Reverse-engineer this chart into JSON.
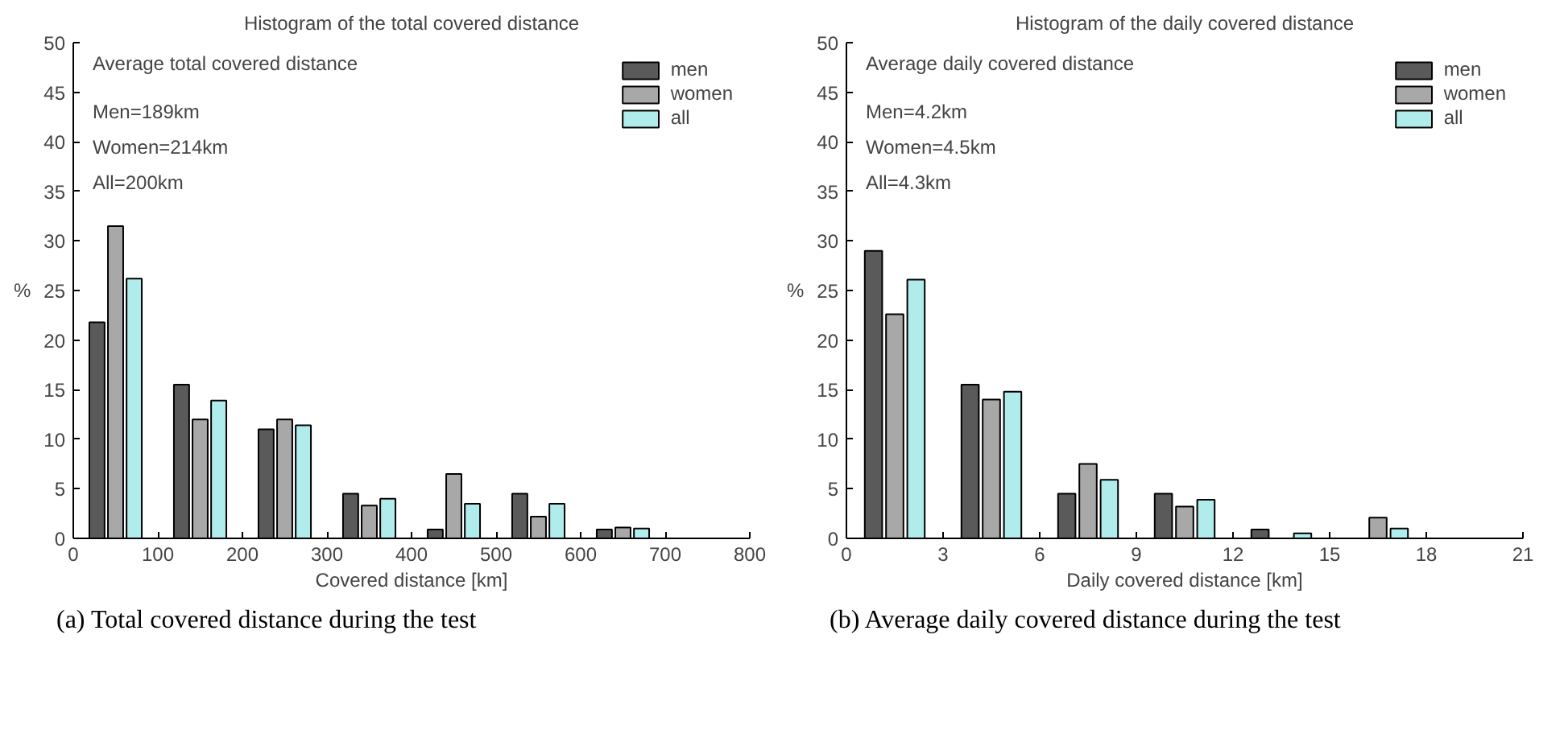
{
  "chart_data": [
    {
      "type": "bar",
      "title": "Histogram of the total covered distance",
      "xlabel": "Covered distance [km]",
      "ylabel": "%",
      "x": [
        50,
        150,
        250,
        350,
        450,
        550,
        650,
        750
      ],
      "series": [
        {
          "name": "men",
          "color": "#5a5a5a",
          "values": [
            21.8,
            15.5,
            11,
            4.5,
            0.9,
            4.5,
            0.9,
            0
          ]
        },
        {
          "name": "women",
          "color": "#a8a8a8",
          "values": [
            31.5,
            12,
            12,
            3.3,
            6.5,
            2.2,
            1.1,
            0
          ]
        },
        {
          "name": "all",
          "color": "#b0ecec",
          "values": [
            26.2,
            13.9,
            11.4,
            4,
            3.5,
            3.5,
            1,
            0
          ]
        }
      ],
      "xlim": [
        0,
        800
      ],
      "xticks": [
        0,
        100,
        200,
        300,
        400,
        500,
        600,
        700,
        800
      ],
      "ylim": [
        0,
        50
      ],
      "yticks": [
        0,
        5,
        10,
        15,
        20,
        25,
        30,
        35,
        40,
        45,
        50
      ],
      "grid": false,
      "legend": "top right",
      "annotations": [
        "Average total covered distance",
        "Men=189km",
        "Women=214km",
        "All=200km",
        "(a)  Total covered distance during the test"
      ]
    },
    {
      "type": "bar",
      "title": "Histogram of the daily covered distance",
      "xlabel": "Daily covered distance [km]",
      "ylabel": "%",
      "x": [
        1.5,
        4.5,
        7.5,
        10.5,
        13.5,
        16.5,
        19.5
      ],
      "series": [
        {
          "name": "men",
          "color": "#5a5a5a",
          "values": [
            29,
            15.5,
            4.5,
            4.5,
            0.9,
            0,
            0
          ]
        },
        {
          "name": "women",
          "color": "#a8a8a8",
          "values": [
            22.6,
            14,
            7.5,
            3.2,
            0,
            2.1,
            0
          ]
        },
        {
          "name": "all",
          "color": "#b0ecec",
          "values": [
            26.1,
            14.8,
            5.9,
            3.9,
            0.5,
            1,
            0
          ]
        }
      ],
      "xlim": [
        0,
        21
      ],
      "xticks": [
        0,
        3,
        6,
        9,
        12,
        15,
        18,
        21
      ],
      "ylim": [
        0,
        50
      ],
      "yticks": [
        0,
        5,
        10,
        15,
        20,
        25,
        30,
        35,
        40,
        45,
        50
      ],
      "grid": false,
      "legend": "top right",
      "annotations": [
        "Average daily covered distance",
        "Men=4.2km",
        "Women=4.5km",
        "All=4.3km",
        "(b)  Average daily covered distance during the test"
      ]
    }
  ]
}
